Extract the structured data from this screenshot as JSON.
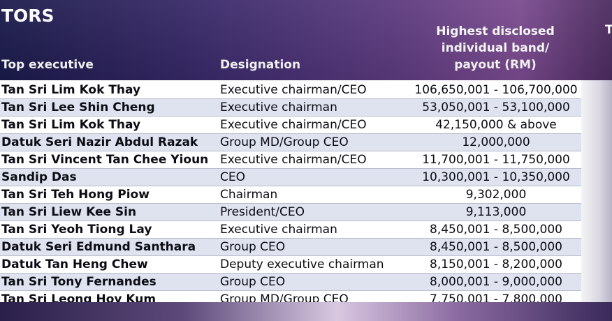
{
  "title": "TORS",
  "headers": {
    "executive": "Top executive",
    "designation": "Designation",
    "band_line1": "Highest disclosed",
    "band_line2": "individual band/",
    "band_line3": "payout (RM)",
    "clipped": "T"
  },
  "rows": [
    {
      "name": "Tan Sri Lim Kok Thay",
      "designation": "Executive chairman/CEO",
      "band": "106,650,001 - 106,700,000"
    },
    {
      "name": "Tan Sri Lee Shin Cheng",
      "designation": "Executive chairman",
      "band": "53,050,001 - 53,100,000"
    },
    {
      "name": "Tan Sri Lim Kok Thay",
      "designation": "Executive chairman/CEO",
      "band": "42,150,000 & above"
    },
    {
      "name": "Datuk Seri Nazir Abdul Razak",
      "designation": "Group MD/Group CEO",
      "band": "12,000,000"
    },
    {
      "name": "Tan Sri Vincent Tan Chee Yioun",
      "designation": "Executive chairman/CEO",
      "band": "11,700,001 - 11,750,000"
    },
    {
      "name": "Sandip Das",
      "designation": "CEO",
      "band": "10,300,001 - 10,350,000"
    },
    {
      "name": "Tan Sri Teh Hong Piow",
      "designation": "Chairman",
      "band": "9,302,000"
    },
    {
      "name": "Tan Sri Liew Kee Sin",
      "designation": "President/CEO",
      "band": "9,113,000"
    },
    {
      "name": "Tan Sri Yeoh Tiong Lay",
      "designation": "Executive chairman",
      "band": "8,450,001 - 8,500,000"
    },
    {
      "name": "Datuk Seri Edmund Santhara",
      "designation": "Group CEO",
      "band": "8,450,001 - 8,500,000"
    },
    {
      "name": "Datuk Tan Heng Chew",
      "designation": "Deputy executive chairman",
      "band": "8,150,001 - 8,200,000"
    },
    {
      "name": "Tan Sri Tony Fernandes",
      "designation": "Group CEO",
      "band": "8,000,001 - 9,000,000"
    },
    {
      "name": "Tan Sri Leong Hoy Kum",
      "designation": "Group MD/Group CEO",
      "band": "7,750,001 - 7,800,000"
    }
  ]
}
